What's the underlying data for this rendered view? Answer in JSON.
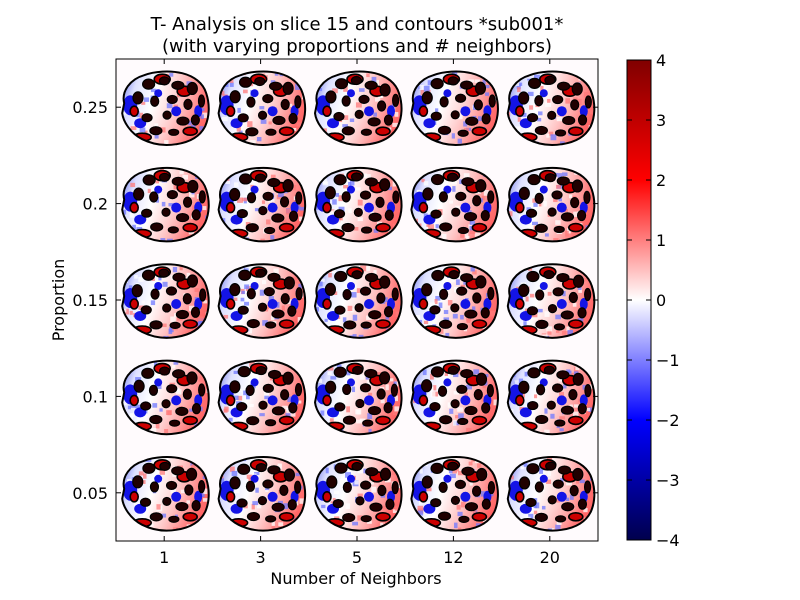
{
  "chart_data": {
    "type": "heatmap",
    "title": "T- Analysis on slice 15 and contours *sub001*",
    "subtitle": "(with varying proportions and # neighbors)",
    "xlabel": "Number of Neighbors",
    "ylabel": "Proportion",
    "x_ticks": [
      "1",
      "3",
      "5",
      "12",
      "20"
    ],
    "y_ticks": [
      "0.25",
      "0.2",
      "0.15",
      "0.1",
      "0.05"
    ],
    "grid": false,
    "colorbar": {
      "min": -4,
      "max": 4,
      "ticks": [
        "4",
        "3",
        "2",
        "1",
        "0",
        "−1",
        "−2",
        "−3",
        "−4"
      ],
      "colormap": "seismic",
      "colors": [
        "#00004d",
        "#0000ff",
        "#ffffff",
        "#ff0000",
        "#800000"
      ]
    },
    "panel_description": "5x5 grid of brain slice T-value maps with black contour outlines"
  }
}
